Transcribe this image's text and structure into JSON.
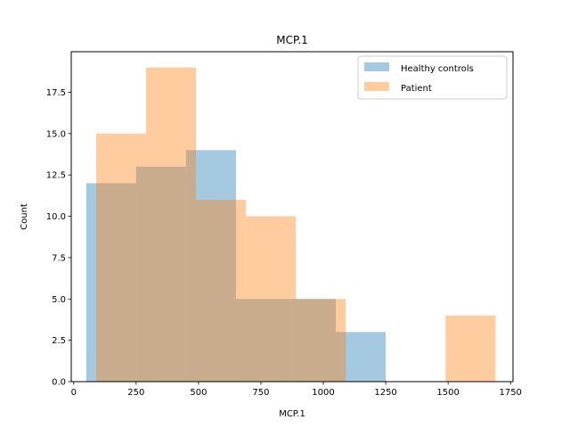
{
  "chart_data": {
    "type": "bar",
    "subtype": "overlapping-histogram",
    "title": "MCP.1",
    "xlabel": "MCP.1",
    "ylabel": "Count",
    "xlim": [
      -10,
      1760
    ],
    "ylim": [
      0,
      19.95
    ],
    "xticks": [
      0,
      250,
      500,
      750,
      1000,
      1250,
      1500,
      1750
    ],
    "yticks": [
      0.0,
      2.5,
      5.0,
      7.5,
      10.0,
      12.5,
      15.0,
      17.5
    ],
    "ytick_labels": [
      "0.0",
      "2.5",
      "5.0",
      "7.5",
      "10.0",
      "12.5",
      "15.0",
      "17.5"
    ],
    "grid": false,
    "legend_position": "top-right",
    "series": [
      {
        "name": "Healthy controls",
        "color": "#1f77b4",
        "alpha": 0.4,
        "bin_edges": [
          50,
          250,
          450,
          650,
          850,
          1050,
          1250
        ],
        "values": [
          12,
          13,
          14,
          5,
          5,
          3
        ]
      },
      {
        "name": "Patient",
        "color": "#ff7f0e",
        "alpha": 0.4,
        "bin_edges": [
          90,
          290,
          490,
          690,
          890,
          1090,
          1290,
          1490,
          1690
        ],
        "values": [
          15,
          19,
          11,
          10,
          5,
          0,
          0,
          4
        ]
      }
    ]
  }
}
